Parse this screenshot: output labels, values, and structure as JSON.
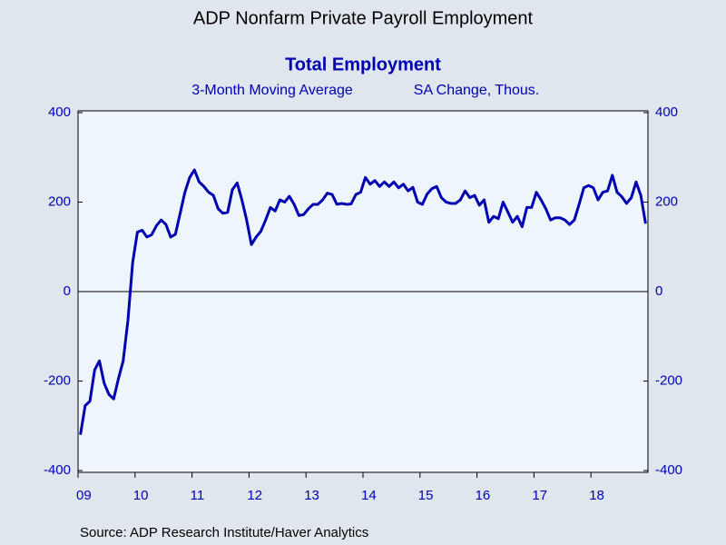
{
  "chart_data": {
    "type": "line",
    "title": "ADP Nonfarm Private Payroll Employment",
    "subtitle": "Total Employment",
    "series_label": "3-Month Moving Average",
    "units_label": "SA Change, Thous.",
    "source": "Source:  ADP Research Institute/Haver Analytics",
    "categories": [
      "09",
      null,
      null,
      null,
      null,
      null,
      null,
      null,
      null,
      null,
      null,
      null,
      "10",
      null,
      null,
      null,
      null,
      null,
      null,
      null,
      null,
      null,
      null,
      null,
      "11",
      null,
      null,
      null,
      null,
      null,
      null,
      null,
      null,
      null,
      null,
      null,
      "12",
      null,
      null,
      null,
      null,
      null,
      null,
      null,
      null,
      null,
      null,
      null,
      "13",
      null,
      null,
      null,
      null,
      null,
      null,
      null,
      null,
      null,
      null,
      null,
      "14",
      null,
      null,
      null,
      null,
      null,
      null,
      null,
      null,
      null,
      null,
      null,
      "15",
      null,
      null,
      null,
      null,
      null,
      null,
      null,
      null,
      null,
      null,
      null,
      "16",
      null,
      null,
      null,
      null,
      null,
      null,
      null,
      null,
      null,
      null,
      null,
      "17",
      null,
      null,
      null,
      null,
      null,
      null,
      null,
      null,
      null,
      null,
      null,
      "18",
      null,
      null,
      null,
      null,
      null,
      null,
      null,
      null,
      null,
      null,
      null
    ],
    "values": [
      -320,
      -255,
      -245,
      -175,
      -155,
      -205,
      -230,
      -240,
      -195,
      -155,
      -65,
      65,
      133,
      137,
      122,
      127,
      147,
      160,
      150,
      122,
      128,
      175,
      222,
      255,
      272,
      245,
      235,
      222,
      215,
      185,
      175,
      177,
      228,
      243,
      205,
      160,
      105,
      122,
      135,
      160,
      188,
      180,
      205,
      200,
      213,
      195,
      170,
      172,
      185,
      195,
      195,
      205,
      220,
      217,
      195,
      197,
      195,
      196,
      217,
      222,
      255,
      240,
      248,
      235,
      245,
      235,
      245,
      232,
      240,
      225,
      233,
      200,
      195,
      218,
      230,
      235,
      210,
      200,
      197,
      197,
      205,
      225,
      210,
      215,
      193,
      205,
      155,
      168,
      163,
      200,
      178,
      155,
      168,
      145,
      188,
      188,
      222,
      205,
      185,
      160,
      165,
      165,
      160,
      150,
      160,
      195,
      232,
      237,
      232,
      205,
      222,
      225,
      260,
      222,
      212,
      197,
      210,
      245,
      215,
      152
    ],
    "color": "#0000b0",
    "ylim": [
      -400,
      400
    ],
    "yticks": [
      -400,
      -200,
      0,
      200,
      400
    ],
    "zero_line": true
  }
}
